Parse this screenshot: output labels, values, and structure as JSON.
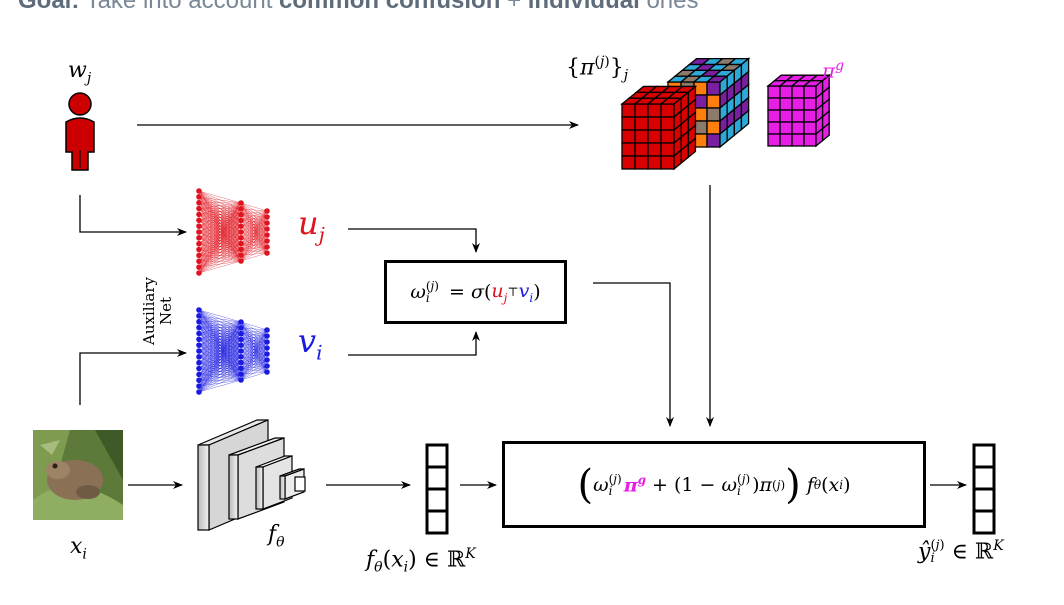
{
  "header": {
    "goal_word": "Goal:",
    "text_a": "Take into account",
    "text_b": "common confusion",
    "sep": "+",
    "text_c": "individual",
    "text_d": "ones"
  },
  "labels": {
    "annotator": "w_j",
    "input": "x_i",
    "backbone": "f_θ",
    "confusion_set": "{π^(j)}_j",
    "global_confusion": "π^g",
    "annotator_embedding": "u_j",
    "image_embedding": "v_i",
    "auxiliary_net": [
      "Auxiliary",
      "Net"
    ],
    "weight_formula": "ω_i^(j) = σ(u_j^⊤ v_i)",
    "mixture_formula": "(ω_i^(j) π^g + (1 − ω_i^(j)) π^(j)) f_θ(x_i)",
    "feature_output": "f_θ(x_i) ∈ ℝ^K",
    "prediction": "ŷ_i^(j) ∈ ℝ^K"
  },
  "colors": {
    "annotator_red": "#cc0000",
    "net_red": "#e0141e",
    "net_blue": "#1a1ae0",
    "global_magenta": "#e61ee6",
    "cube_red": "#d90000",
    "cube_orange": "#ff7f0e",
    "cube_gray": "#8c7a6b",
    "cube_blue": "#2ea8d6",
    "cube_purple": "#7a1fa0"
  },
  "icons": [
    "person-icon",
    "frog-image",
    "cnn-stack-icon",
    "neural-net-icon",
    "confusion-cube-icon"
  ]
}
